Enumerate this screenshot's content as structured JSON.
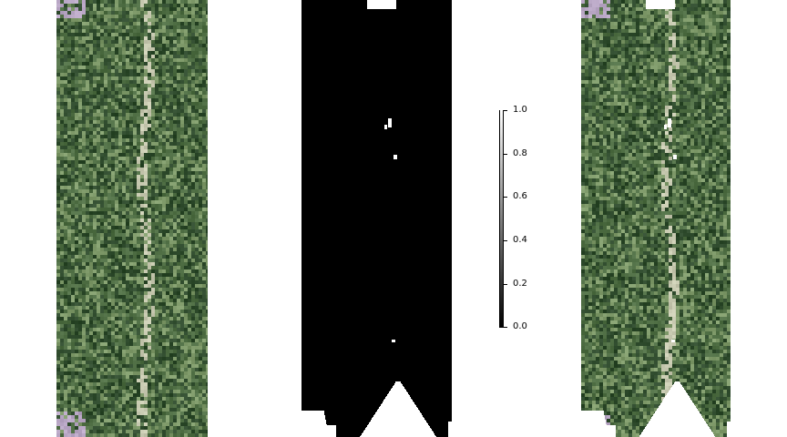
{
  "panels": {
    "rgb_image": {
      "description_icon": "rgb-tree-image"
    },
    "binary_mask": {
      "description_icon": "binary-mask-image"
    },
    "masked_image": {
      "description_icon": "masked-tree-image"
    }
  },
  "colorbar": {
    "ticks": [
      "1.0",
      "0.8",
      "0.6",
      "0.4",
      "0.2",
      "0.0"
    ],
    "min": 0.0,
    "max": 1.0,
    "colors": {
      "high": "#ffffff",
      "low": "#000000"
    }
  },
  "palette": {
    "foliage_dark": "#2e4a2c",
    "foliage_mid": "#4f6e44",
    "foliage_light": "#7f9a6a",
    "branch": "#c7c9b0",
    "haze": "#b8a6c4"
  }
}
